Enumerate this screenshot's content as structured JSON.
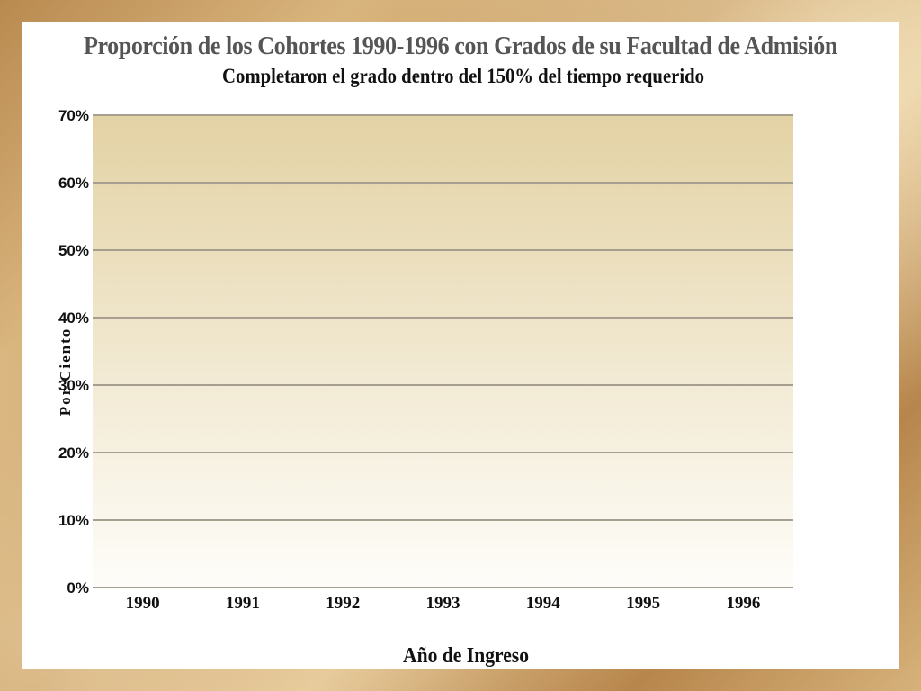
{
  "chart_data": {
    "type": "bar",
    "title": "Proporción de los Cohortes 1990-1996 con Grados de su Facultad de Admisión",
    "subtitle": "Completaron el grado dentro del 150% del tiempo requerido",
    "xlabel": "Año de Ingreso",
    "ylabel": "Por Ciento",
    "categories": [
      "1990",
      "1991",
      "1992",
      "1993",
      "1994",
      "1995",
      "1996"
    ],
    "values": [
      null,
      null,
      null,
      null,
      null,
      null,
      null
    ],
    "ylim": [
      0,
      70
    ],
    "yticks": [
      0,
      10,
      20,
      30,
      40,
      50,
      60,
      70
    ],
    "ytick_labels": [
      "0%",
      "10%",
      "20%",
      "30%",
      "40%",
      "50%",
      "60%",
      "70%"
    ],
    "grid": true,
    "colors": {
      "plot_top": "#e3d2a4",
      "plot_bottom": "#fefdf9",
      "grid": "#a69e8e"
    }
  }
}
